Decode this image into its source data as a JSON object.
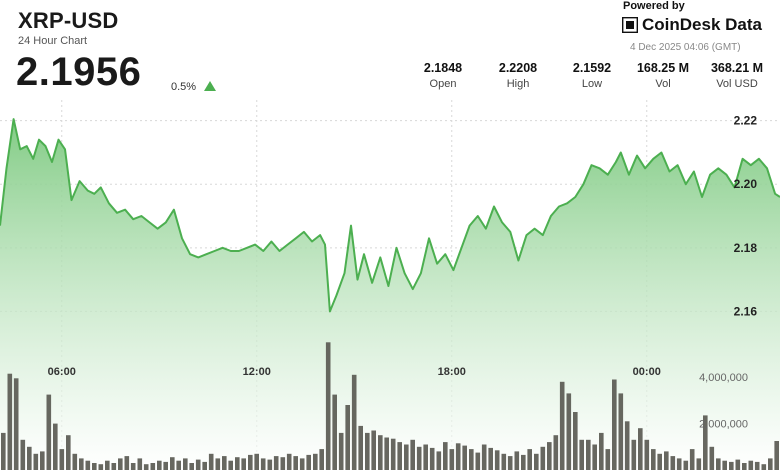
{
  "header": {
    "title": "XRP-USD",
    "subtitle": "24 Hour Chart",
    "price": "2.1956",
    "change_pct": "0.5%",
    "change_direction": "up"
  },
  "branding": {
    "powered_by": "Powered by",
    "name": "CoinDesk Data",
    "timestamp": "4 Dec 2025 04:06 (GMT)"
  },
  "stats": [
    {
      "value": "2.1848",
      "label": "Open"
    },
    {
      "value": "2.2208",
      "label": "High"
    },
    {
      "value": "2.1592",
      "label": "Low"
    },
    {
      "value": "168.25 M",
      "label": "Vol"
    },
    {
      "value": "368.21 M",
      "label": "Vol USD"
    }
  ],
  "colors": {
    "line": "#4caf50",
    "area_top": "#7cc97f",
    "area_bottom": "#ffffff",
    "volume_bar": "#5a5a52",
    "grid": "#d8d8d8",
    "arrow": "#4caf50"
  },
  "chart_data": {
    "type": "area",
    "price_axis": {
      "ticks": [
        "2.22",
        "2.20",
        "2.18",
        "2.16"
      ],
      "tick_values": [
        2.22,
        2.2,
        2.18,
        2.16
      ],
      "range": [
        2.151,
        2.2265
      ]
    },
    "volume_axis": {
      "ticks": [
        "4,000,000",
        "2,000,000"
      ],
      "tick_values": [
        4000000,
        2000000
      ],
      "range": [
        0,
        5600000
      ]
    },
    "x_axis": {
      "ticks": [
        "06:00",
        "12:00",
        "18:00",
        "00:00"
      ],
      "tick_hours": [
        6,
        12,
        18,
        24
      ],
      "range_hours": [
        4.1,
        28.1
      ]
    },
    "grid": true,
    "price_series": [
      [
        4.1,
        2.187
      ],
      [
        4.3,
        2.205
      ],
      [
        4.52,
        2.2205
      ],
      [
        4.72,
        2.211
      ],
      [
        4.92,
        2.212
      ],
      [
        5.12,
        2.208
      ],
      [
        5.3,
        2.214
      ],
      [
        5.5,
        2.212
      ],
      [
        5.7,
        2.207
      ],
      [
        5.9,
        2.214
      ],
      [
        6.1,
        2.211
      ],
      [
        6.3,
        2.195
      ],
      [
        6.55,
        2.201
      ],
      [
        6.8,
        2.198
      ],
      [
        7.0,
        2.197
      ],
      [
        7.2,
        2.199
      ],
      [
        7.45,
        2.194
      ],
      [
        7.7,
        2.191
      ],
      [
        7.95,
        2.192
      ],
      [
        8.2,
        2.189
      ],
      [
        8.45,
        2.19
      ],
      [
        8.7,
        2.188
      ],
      [
        8.95,
        2.186
      ],
      [
        9.2,
        2.188
      ],
      [
        9.45,
        2.192
      ],
      [
        9.7,
        2.183
      ],
      [
        9.95,
        2.178
      ],
      [
        10.2,
        2.177
      ],
      [
        10.45,
        2.178
      ],
      [
        10.7,
        2.179
      ],
      [
        10.95,
        2.18
      ],
      [
        11.2,
        2.179
      ],
      [
        11.45,
        2.179
      ],
      [
        11.7,
        2.18
      ],
      [
        11.95,
        2.181
      ],
      [
        12.2,
        2.179
      ],
      [
        12.45,
        2.182
      ],
      [
        12.7,
        2.179
      ],
      [
        12.95,
        2.181
      ],
      [
        13.2,
        2.183
      ],
      [
        13.45,
        2.185
      ],
      [
        13.7,
        2.182
      ],
      [
        13.95,
        2.184
      ],
      [
        14.1,
        2.181
      ],
      [
        14.25,
        2.16
      ],
      [
        14.45,
        2.165
      ],
      [
        14.7,
        2.172
      ],
      [
        14.9,
        2.187
      ],
      [
        15.1,
        2.17
      ],
      [
        15.3,
        2.178
      ],
      [
        15.55,
        2.169
      ],
      [
        15.8,
        2.177
      ],
      [
        16.05,
        2.168
      ],
      [
        16.3,
        2.18
      ],
      [
        16.55,
        2.172
      ],
      [
        16.8,
        2.167
      ],
      [
        17.05,
        2.172
      ],
      [
        17.3,
        2.183
      ],
      [
        17.55,
        2.175
      ],
      [
        17.8,
        2.178
      ],
      [
        18.05,
        2.173
      ],
      [
        18.3,
        2.18
      ],
      [
        18.55,
        2.187
      ],
      [
        18.8,
        2.19
      ],
      [
        19.05,
        2.186
      ],
      [
        19.3,
        2.193
      ],
      [
        19.55,
        2.188
      ],
      [
        19.8,
        2.185
      ],
      [
        20.05,
        2.176
      ],
      [
        20.3,
        2.184
      ],
      [
        20.55,
        2.186
      ],
      [
        20.8,
        2.184
      ],
      [
        21.05,
        2.19
      ],
      [
        21.3,
        2.193
      ],
      [
        21.55,
        2.194
      ],
      [
        21.8,
        2.196
      ],
      [
        22.05,
        2.2
      ],
      [
        22.3,
        2.206
      ],
      [
        22.55,
        2.205
      ],
      [
        22.8,
        2.203
      ],
      [
        23.05,
        2.207
      ],
      [
        23.2,
        2.21
      ],
      [
        23.45,
        2.203
      ],
      [
        23.7,
        2.209
      ],
      [
        23.95,
        2.205
      ],
      [
        24.2,
        2.208
      ],
      [
        24.45,
        2.21
      ],
      [
        24.7,
        2.204
      ],
      [
        24.95,
        2.206
      ],
      [
        25.2,
        2.2
      ],
      [
        25.45,
        2.204
      ],
      [
        25.7,
        2.196
      ],
      [
        25.95,
        2.203
      ],
      [
        26.2,
        2.205
      ],
      [
        26.45,
        2.203
      ],
      [
        26.7,
        2.199
      ],
      [
        26.95,
        2.208
      ],
      [
        27.2,
        2.206
      ],
      [
        27.45,
        2.208
      ],
      [
        27.7,
        2.205
      ],
      [
        27.95,
        2.197
      ],
      [
        28.1,
        2.196
      ]
    ],
    "volume_series": [
      [
        4.2,
        1600000
      ],
      [
        4.4,
        4150000
      ],
      [
        4.6,
        3950000
      ],
      [
        4.8,
        1300000
      ],
      [
        5.0,
        1000000
      ],
      [
        5.2,
        700000
      ],
      [
        5.4,
        800000
      ],
      [
        5.6,
        3250000
      ],
      [
        5.8,
        2000000
      ],
      [
        6.0,
        900000
      ],
      [
        6.2,
        1500000
      ],
      [
        6.4,
        700000
      ],
      [
        6.6,
        500000
      ],
      [
        6.8,
        400000
      ],
      [
        7.0,
        300000
      ],
      [
        7.2,
        250000
      ],
      [
        7.4,
        400000
      ],
      [
        7.6,
        300000
      ],
      [
        7.8,
        500000
      ],
      [
        8.0,
        600000
      ],
      [
        8.2,
        300000
      ],
      [
        8.4,
        500000
      ],
      [
        8.6,
        250000
      ],
      [
        8.8,
        300000
      ],
      [
        9.0,
        400000
      ],
      [
        9.2,
        350000
      ],
      [
        9.4,
        550000
      ],
      [
        9.6,
        400000
      ],
      [
        9.8,
        500000
      ],
      [
        10.0,
        300000
      ],
      [
        10.2,
        450000
      ],
      [
        10.4,
        350000
      ],
      [
        10.6,
        700000
      ],
      [
        10.8,
        500000
      ],
      [
        11.0,
        600000
      ],
      [
        11.2,
        400000
      ],
      [
        11.4,
        550000
      ],
      [
        11.6,
        500000
      ],
      [
        11.8,
        650000
      ],
      [
        12.0,
        700000
      ],
      [
        12.2,
        500000
      ],
      [
        12.4,
        450000
      ],
      [
        12.6,
        600000
      ],
      [
        12.8,
        550000
      ],
      [
        13.0,
        700000
      ],
      [
        13.2,
        600000
      ],
      [
        13.4,
        500000
      ],
      [
        13.6,
        650000
      ],
      [
        13.8,
        700000
      ],
      [
        14.0,
        900000
      ],
      [
        14.2,
        5500000
      ],
      [
        14.4,
        3250000
      ],
      [
        14.6,
        1600000
      ],
      [
        14.8,
        2800000
      ],
      [
        15.0,
        4100000
      ],
      [
        15.2,
        1900000
      ],
      [
        15.4,
        1600000
      ],
      [
        15.6,
        1700000
      ],
      [
        15.8,
        1500000
      ],
      [
        16.0,
        1400000
      ],
      [
        16.2,
        1350000
      ],
      [
        16.4,
        1200000
      ],
      [
        16.6,
        1100000
      ],
      [
        16.8,
        1300000
      ],
      [
        17.0,
        1000000
      ],
      [
        17.2,
        1100000
      ],
      [
        17.4,
        950000
      ],
      [
        17.6,
        800000
      ],
      [
        17.8,
        1200000
      ],
      [
        18.0,
        900000
      ],
      [
        18.2,
        1150000
      ],
      [
        18.4,
        1050000
      ],
      [
        18.6,
        900000
      ],
      [
        18.8,
        750000
      ],
      [
        19.0,
        1100000
      ],
      [
        19.2,
        950000
      ],
      [
        19.4,
        850000
      ],
      [
        19.6,
        700000
      ],
      [
        19.8,
        600000
      ],
      [
        20.0,
        800000
      ],
      [
        20.2,
        650000
      ],
      [
        20.4,
        900000
      ],
      [
        20.6,
        700000
      ],
      [
        20.8,
        1000000
      ],
      [
        21.0,
        1200000
      ],
      [
        21.2,
        1500000
      ],
      [
        21.4,
        3800000
      ],
      [
        21.6,
        3300000
      ],
      [
        21.8,
        2500000
      ],
      [
        22.0,
        1300000
      ],
      [
        22.2,
        1300000
      ],
      [
        22.4,
        1100000
      ],
      [
        22.6,
        1600000
      ],
      [
        22.8,
        900000
      ],
      [
        23.0,
        3900000
      ],
      [
        23.2,
        3300000
      ],
      [
        23.4,
        2100000
      ],
      [
        23.6,
        1300000
      ],
      [
        23.8,
        1800000
      ],
      [
        24.0,
        1300000
      ],
      [
        24.2,
        900000
      ],
      [
        24.4,
        700000
      ],
      [
        24.6,
        800000
      ],
      [
        24.8,
        600000
      ],
      [
        25.0,
        500000
      ],
      [
        25.2,
        400000
      ],
      [
        25.4,
        900000
      ],
      [
        25.6,
        500000
      ],
      [
        25.8,
        2350000
      ],
      [
        26.0,
        1000000
      ],
      [
        26.2,
        500000
      ],
      [
        26.4,
        400000
      ],
      [
        26.6,
        350000
      ],
      [
        26.8,
        450000
      ],
      [
        27.0,
        300000
      ],
      [
        27.2,
        400000
      ],
      [
        27.4,
        350000
      ],
      [
        27.6,
        250000
      ],
      [
        27.8,
        500000
      ],
      [
        28.0,
        1250000
      ]
    ]
  }
}
